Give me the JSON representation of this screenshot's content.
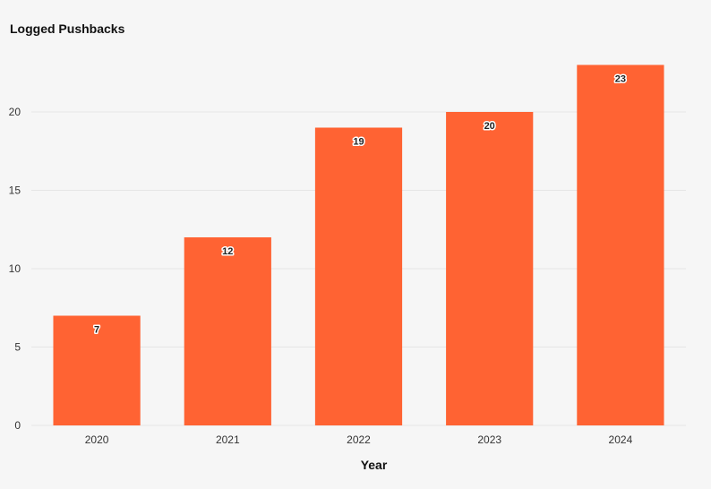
{
  "chart_data": {
    "type": "bar",
    "title": "Logged Pushbacks",
    "xlabel": "Year",
    "ylabel": "",
    "categories": [
      "2020",
      "2021",
      "2022",
      "2023",
      "2024"
    ],
    "values": [
      7,
      12,
      19,
      20,
      23
    ],
    "data_labels": [
      "7",
      "12",
      "19",
      "20",
      "23"
    ],
    "ylim": [
      0,
      24
    ],
    "yticks": [
      0,
      5,
      10,
      15,
      20
    ],
    "ytick_labels": [
      "0",
      "5",
      "10",
      "15",
      "20"
    ],
    "grid": true,
    "legend": "none",
    "bar_color": "#ff6333",
    "grid_color": "#e6e6e6"
  }
}
